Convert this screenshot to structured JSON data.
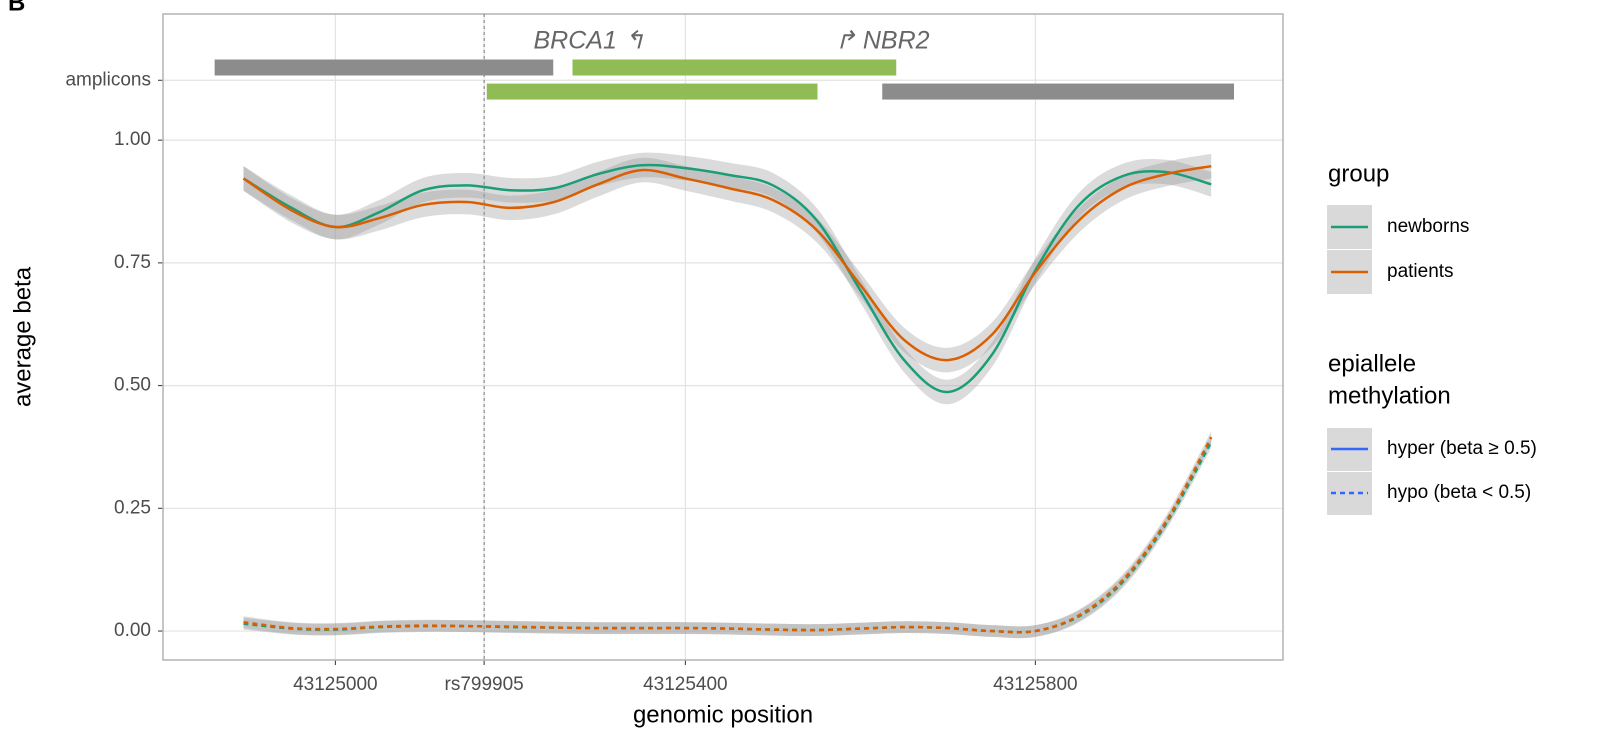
{
  "chart_data": {
    "type": "line",
    "panel_label": "B",
    "xlabel": "genomic position",
    "ylabel": "average beta",
    "xlim": [
      43124803,
      43126083
    ],
    "ylim": [
      -0.059,
      1.257
    ],
    "xticks": [
      43125000,
      {
        "value": 43125170,
        "label": "rs799905"
      },
      43125400,
      43125800
    ],
    "yticks": [
      {
        "value": 0,
        "label": "0.00"
      },
      {
        "value": 0.25,
        "label": "0.25"
      },
      {
        "value": 0.5,
        "label": "0.50"
      },
      {
        "value": 0.75,
        "label": "0.75"
      },
      {
        "value": 1,
        "label": "1.00"
      },
      {
        "value": 1.122,
        "label": "amplicons"
      }
    ],
    "grid": true,
    "vline": 43125170,
    "amplicons": [
      {
        "start": 43124862,
        "end": 43125249,
        "y": 1.148,
        "color": "#8c8c8c"
      },
      {
        "start": 43125271,
        "end": 43125641,
        "y": 1.148,
        "color": "#8fbc55"
      },
      {
        "start": 43125173,
        "end": 43125551,
        "y": 1.099,
        "color": "#8fbc55"
      },
      {
        "start": 43125625,
        "end": 43126027,
        "y": 1.099,
        "color": "#8c8c8c"
      }
    ],
    "annotations": [
      {
        "text": "BRCA1 ↰",
        "x": 43125290,
        "y": 1.2
      },
      {
        "text": "↱ NBR2",
        "x": 43125625,
        "y": 1.2
      }
    ],
    "x": [
      43124895,
      43124950,
      43125000,
      43125050,
      43125100,
      43125150,
      43125200,
      43125250,
      43125300,
      43125350,
      43125400,
      43125450,
      43125500,
      43125550,
      43125600,
      43125650,
      43125700,
      43125750,
      43125800,
      43125850,
      43125900,
      43125950,
      43126001
    ],
    "series": [
      {
        "color": "#1b9e77",
        "dashed": false,
        "ci": 0.025,
        "values": [
          0.922,
          0.862,
          0.823,
          0.853,
          0.898,
          0.908,
          0.898,
          0.902,
          0.931,
          0.949,
          0.943,
          0.929,
          0.908,
          0.837,
          0.694,
          0.552,
          0.487,
          0.562,
          0.735,
          0.868,
          0.927,
          0.935,
          0.91
        ]
      },
      {
        "color": "#d95f02",
        "dashed": false,
        "ci": 0.025,
        "values": [
          0.922,
          0.857,
          0.823,
          0.841,
          0.868,
          0.874,
          0.862,
          0.874,
          0.91,
          0.939,
          0.922,
          0.902,
          0.878,
          0.817,
          0.705,
          0.593,
          0.552,
          0.603,
          0.731,
          0.837,
          0.902,
          0.931,
          0.947
        ]
      },
      {
        "color": "#1b9e77",
        "dashed": true,
        "ci": 0.012,
        "values": [
          0.015,
          0.005,
          0.003,
          0.008,
          0.01,
          0.01,
          0.008,
          0.007,
          0.006,
          0.006,
          0.006,
          0.005,
          0.003,
          0.002,
          0.005,
          0.008,
          0.006,
          0.0,
          0.0,
          0.03,
          0.1,
          0.22,
          0.385
        ]
      },
      {
        "color": "#d95f02",
        "dashed": true,
        "ci": 0.012,
        "values": [
          0.018,
          0.006,
          0.004,
          0.009,
          0.011,
          0.01,
          0.009,
          0.007,
          0.006,
          0.006,
          0.006,
          0.005,
          0.003,
          0.002,
          0.005,
          0.008,
          0.006,
          0.0,
          0.0,
          0.032,
          0.104,
          0.225,
          0.395
        ]
      }
    ],
    "legend_group": {
      "title": "group",
      "entries": [
        {
          "name": "newborns",
          "color": "#1b9e77"
        },
        {
          "name": "patients",
          "color": "#d95f02"
        }
      ]
    },
    "legend_methylation": {
      "title": [
        "epiallele",
        "methylation"
      ],
      "entries": [
        {
          "name": "hyper (beta ≥ 0.5)",
          "color": "#3366ff",
          "dashed": false
        },
        {
          "name": "hypo (beta < 0.5)",
          "color": "#3366ff",
          "dashed": true
        }
      ]
    }
  }
}
